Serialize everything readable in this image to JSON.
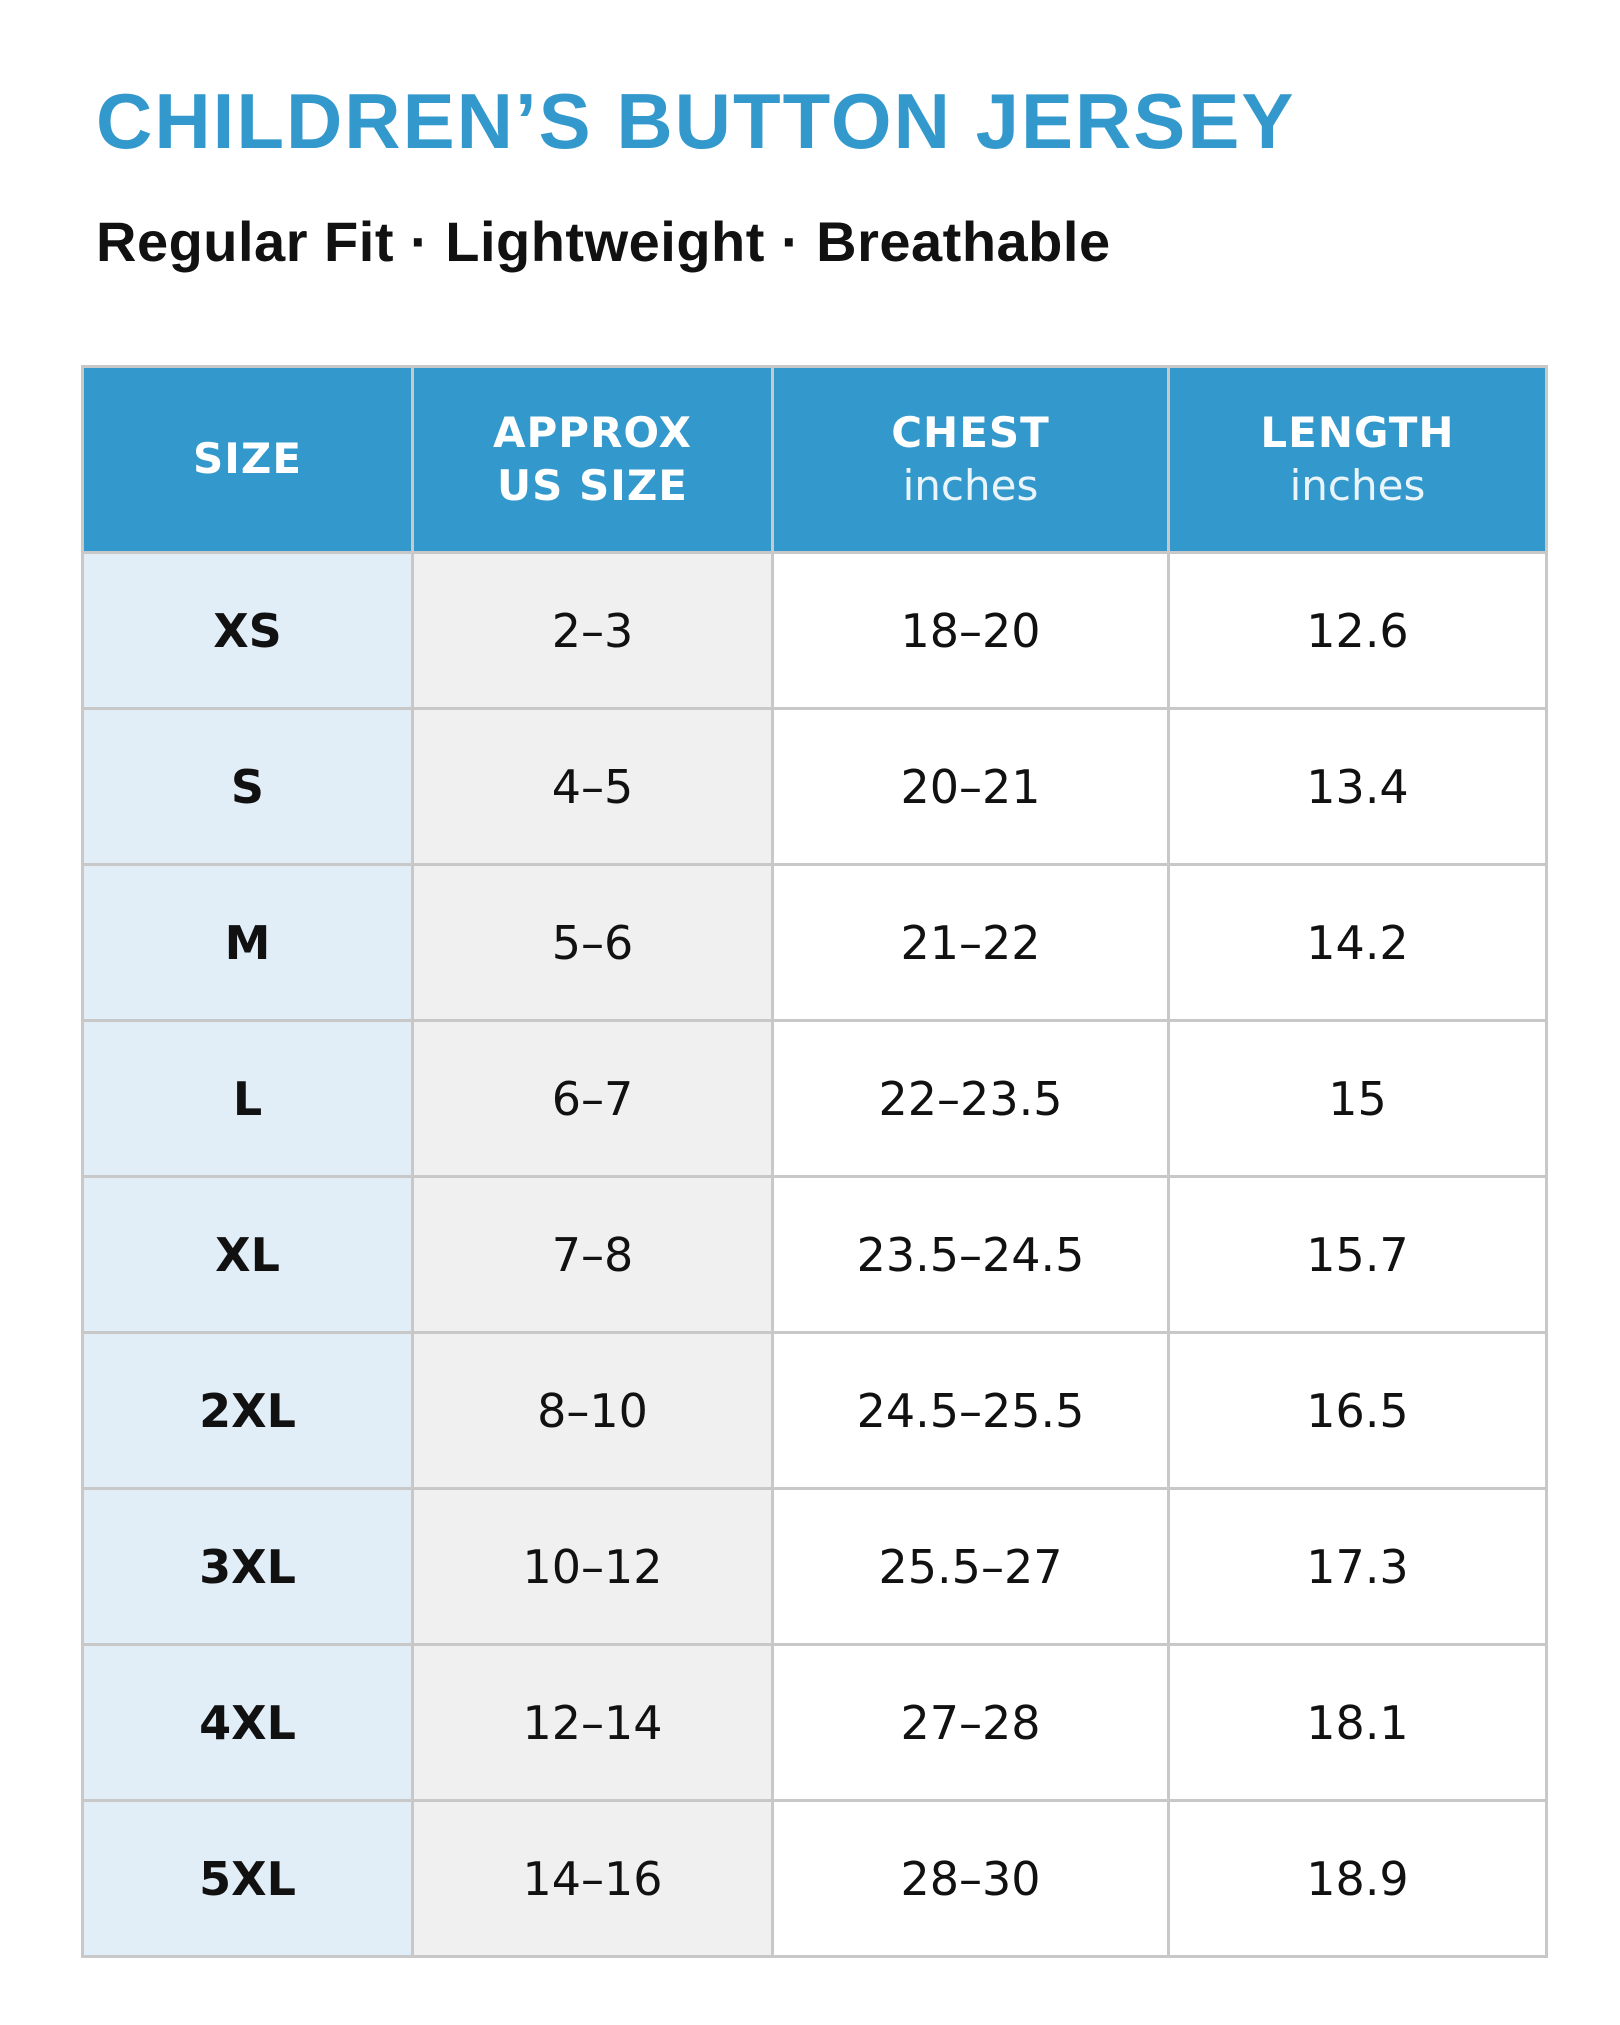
{
  "title": "CHILDREN’S BUTTON JERSEY",
  "subtitle": "Regular Fit · Lightweight · Breathable",
  "colors": {
    "accent": "#3399cc",
    "size_column_bg": "#e1edf7",
    "us_column_bg": "#f0f0f0",
    "grid": "#c8c8c8"
  },
  "table": {
    "headers": {
      "size": {
        "main": "SIZE"
      },
      "us_size": {
        "main_line1": "APPROX",
        "main_line2": "US SIZE"
      },
      "chest": {
        "main": "CHEST",
        "unit": "inches"
      },
      "length": {
        "main": "LENGTH",
        "unit": "inches"
      }
    },
    "rows": [
      {
        "size": "XS",
        "us": "2–3",
        "chest": "18–20",
        "length": "12.6"
      },
      {
        "size": "S",
        "us": "4–5",
        "chest": "20–21",
        "length": "13.4"
      },
      {
        "size": "M",
        "us": "5–6",
        "chest": "21–22",
        "length": "14.2"
      },
      {
        "size": "L",
        "us": "6–7",
        "chest": "22–23.5",
        "length": "15"
      },
      {
        "size": "XL",
        "us": "7–8",
        "chest": "23.5–24.5",
        "length": "15.7"
      },
      {
        "size": "2XL",
        "us": "8–10",
        "chest": "24.5–25.5",
        "length": "16.5"
      },
      {
        "size": "3XL",
        "us": "10–12",
        "chest": "25.5–27",
        "length": "17.3"
      },
      {
        "size": "4XL",
        "us": "12–14",
        "chest": "27–28",
        "length": "18.1"
      },
      {
        "size": "5XL",
        "us": "14–16",
        "chest": "28–30",
        "length": "18.9"
      }
    ]
  }
}
